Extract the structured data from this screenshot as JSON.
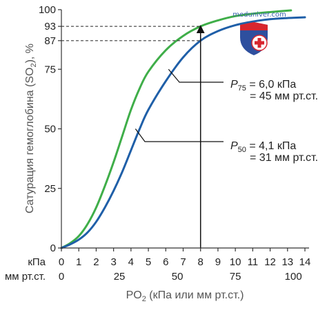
{
  "chart_data": {
    "type": "line",
    "x_unit_primary": "кПа",
    "x_unit_secondary": "мм рт.ст.",
    "xlabel_main": "PO",
    "xlabel_sub": "2",
    "xlabel_rest": " (кПа или мм рт.ст.)",
    "ylabel_main": "Сатурация гемоглобина (SO",
    "ylabel_sub": "2",
    "ylabel_rest": "), %",
    "xlim": [
      0,
      14.5
    ],
    "ylim": [
      0,
      100
    ],
    "x_ticks_kpa": [
      0,
      1,
      2,
      3,
      4,
      5,
      6,
      7,
      8,
      9,
      10,
      11,
      12,
      13,
      14
    ],
    "x_ticks_mmhg": [
      0,
      25,
      50,
      75,
      100
    ],
    "y_ticks": [
      0,
      25,
      50,
      75,
      87,
      93,
      100
    ],
    "series": [
      {
        "color": "#3fae49",
        "x": [
          0,
          0.5,
          1,
          1.5,
          2,
          2.5,
          3,
          3.5,
          4,
          4.5,
          5,
          6,
          7,
          8,
          9,
          10,
          11,
          12,
          13.2
        ],
        "y": [
          0,
          2,
          5,
          10,
          17,
          26,
          36,
          47,
          58,
          67,
          74,
          83,
          89,
          93,
          95.5,
          97.3,
          98.3,
          99,
          99.7
        ]
      },
      {
        "color": "#1f5fa8",
        "x": [
          0,
          0.5,
          1,
          1.5,
          2,
          2.5,
          3,
          3.5,
          4,
          4.5,
          5,
          6,
          7,
          8,
          9,
          10,
          11,
          12,
          13,
          14
        ],
        "y": [
          0,
          1.5,
          3.5,
          6.5,
          11,
          17,
          24,
          32,
          41,
          50,
          58,
          70,
          80,
          87,
          91,
          93.5,
          95,
          96,
          96.5,
          96.8
        ]
      }
    ],
    "reference": {
      "x_kpa": 8,
      "y_values": [
        93,
        87
      ]
    },
    "annotations": [
      {
        "p_main": "P",
        "p_sub": "75",
        "line1_rest": " = 6,0 кПа",
        "line2": "= 45 мм рт.ст.",
        "point": [
          6.0,
          75
        ]
      },
      {
        "p_main": "P",
        "p_sub": "50",
        "line1_rest": " = 4,1 кПа",
        "line2": "= 31 мм рт.ст.",
        "point": [
          4.1,
          50
        ]
      }
    ]
  },
  "watermark": {
    "text": "meduniver.com",
    "icon": "shield-cross-icon",
    "shield_red": "#d8262e",
    "shield_blue": "#2e4f9e"
  }
}
